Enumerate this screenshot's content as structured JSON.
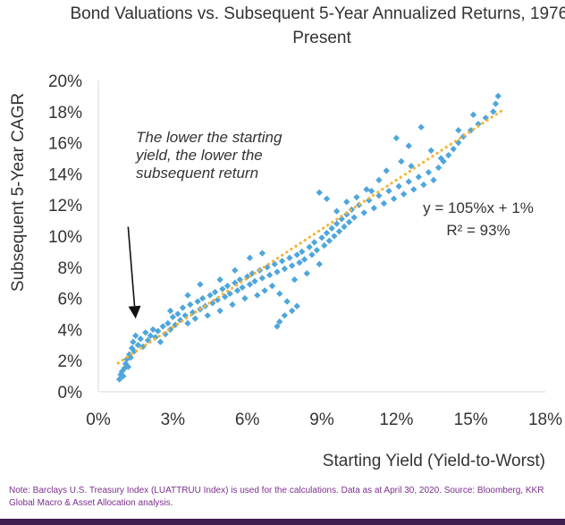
{
  "chart_data": {
    "type": "scatter",
    "title": "Bond Valuations vs. Subsequent 5-Year Annualized Returns, 1976-Present",
    "xlabel": "Starting Yield (Yield-to-Worst)",
    "ylabel": "Subsequent 5-Year CAGR",
    "xlim": [
      0,
      18
    ],
    "ylim": [
      0,
      20
    ],
    "x_ticks": [
      "0%",
      "3%",
      "6%",
      "9%",
      "12%",
      "15%",
      "18%"
    ],
    "y_ticks": [
      "0%",
      "2%",
      "4%",
      "6%",
      "8%",
      "10%",
      "12%",
      "14%",
      "16%",
      "18%",
      "20%"
    ],
    "grid": false,
    "annotation": [
      "The lower the starting",
      "yield, the lower the",
      "subsequent return"
    ],
    "annotation_arrow_from": [
      1.2,
      10.6
    ],
    "annotation_arrow_to": [
      1.5,
      4.7
    ],
    "trendline": {
      "slope": 1.05,
      "intercept": 1.0,
      "x_range": [
        0.8,
        16.3
      ],
      "color": "#F5B335",
      "style": "dotted"
    },
    "equation": [
      "y = 105%x + 1%",
      "R² = 93%"
    ],
    "marker_color": "#4EA6DC",
    "series": [
      {
        "points": [
          [
            0.85,
            0.8
          ],
          [
            0.9,
            1.1
          ],
          [
            0.95,
            1.3
          ],
          [
            1.0,
            1.0
          ],
          [
            1.05,
            1.5
          ],
          [
            1.1,
            1.8
          ],
          [
            1.15,
            2.1
          ],
          [
            1.2,
            1.6
          ],
          [
            1.25,
            2.4
          ],
          [
            1.3,
            2.2
          ],
          [
            1.35,
            2.8
          ],
          [
            1.4,
            3.2
          ],
          [
            1.45,
            2.6
          ],
          [
            1.5,
            3.6
          ],
          [
            1.6,
            3.0
          ],
          [
            1.7,
            3.4
          ],
          [
            1.8,
            2.9
          ],
          [
            1.9,
            3.8
          ],
          [
            2.0,
            3.3
          ],
          [
            2.1,
            3.6
          ],
          [
            2.2,
            4.0
          ],
          [
            2.3,
            3.5
          ],
          [
            2.4,
            3.9
          ],
          [
            2.5,
            3.2
          ],
          [
            2.6,
            4.2
          ],
          [
            2.7,
            3.7
          ],
          [
            2.8,
            4.4
          ],
          [
            2.9,
            4.0
          ],
          [
            3.0,
            4.8
          ],
          [
            3.1,
            4.3
          ],
          [
            3.2,
            5.0
          ],
          [
            3.3,
            4.6
          ],
          [
            3.4,
            5.4
          ],
          [
            3.5,
            4.9
          ],
          [
            3.6,
            4.4
          ],
          [
            3.7,
            5.6
          ],
          [
            3.8,
            5.1
          ],
          [
            3.9,
            4.7
          ],
          [
            4.0,
            5.8
          ],
          [
            4.1,
            5.3
          ],
          [
            4.2,
            6.0
          ],
          [
            4.3,
            5.5
          ],
          [
            4.4,
            4.9
          ],
          [
            4.5,
            6.2
          ],
          [
            4.6,
            5.7
          ],
          [
            4.7,
            6.4
          ],
          [
            4.8,
            5.9
          ],
          [
            4.9,
            5.2
          ],
          [
            5.0,
            6.6
          ],
          [
            5.1,
            6.1
          ],
          [
            5.2,
            6.8
          ],
          [
            5.3,
            6.3
          ],
          [
            5.4,
            5.6
          ],
          [
            5.5,
            7.0
          ],
          [
            5.6,
            6.5
          ],
          [
            5.7,
            7.2
          ],
          [
            5.8,
            6.7
          ],
          [
            5.9,
            6.0
          ],
          [
            6.0,
            7.4
          ],
          [
            6.1,
            6.9
          ],
          [
            6.2,
            7.6
          ],
          [
            6.3,
            7.1
          ],
          [
            6.4,
            6.2
          ],
          [
            6.5,
            7.8
          ],
          [
            6.6,
            7.3
          ],
          [
            6.7,
            6.5
          ],
          [
            6.8,
            8.0
          ],
          [
            6.9,
            7.5
          ],
          [
            7.0,
            6.8
          ],
          [
            7.1,
            8.2
          ],
          [
            7.2,
            7.7
          ],
          [
            7.3,
            6.3
          ],
          [
            7.4,
            8.4
          ],
          [
            7.5,
            7.9
          ],
          [
            7.6,
            5.8
          ],
          [
            7.7,
            8.6
          ],
          [
            7.8,
            8.1
          ],
          [
            7.9,
            7.2
          ],
          [
            8.0,
            8.8
          ],
          [
            8.1,
            8.3
          ],
          [
            8.2,
            9.0
          ],
          [
            8.3,
            8.5
          ],
          [
            8.4,
            7.6
          ],
          [
            8.5,
            9.3
          ],
          [
            8.6,
            8.8
          ],
          [
            8.7,
            9.6
          ],
          [
            8.8,
            9.1
          ],
          [
            8.9,
            8.2
          ],
          [
            9.0,
            9.9
          ],
          [
            9.1,
            9.4
          ],
          [
            9.2,
            10.2
          ],
          [
            9.3,
            9.7
          ],
          [
            9.4,
            10.5
          ],
          [
            9.5,
            10.0
          ],
          [
            9.6,
            10.8
          ],
          [
            9.7,
            10.3
          ],
          [
            9.8,
            11.1
          ],
          [
            9.9,
            10.6
          ],
          [
            10.0,
            11.4
          ],
          [
            10.1,
            10.9
          ],
          [
            10.2,
            11.7
          ],
          [
            10.3,
            11.2
          ],
          [
            10.5,
            12.0
          ],
          [
            10.7,
            11.5
          ],
          [
            10.9,
            12.3
          ],
          [
            11.1,
            11.8
          ],
          [
            11.3,
            12.6
          ],
          [
            11.5,
            12.1
          ],
          [
            11.7,
            12.9
          ],
          [
            11.9,
            12.4
          ],
          [
            12.1,
            13.2
          ],
          [
            12.3,
            12.7
          ],
          [
            12.5,
            13.5
          ],
          [
            12.7,
            13.0
          ],
          [
            12.9,
            13.8
          ],
          [
            13.1,
            13.3
          ],
          [
            13.3,
            14.1
          ],
          [
            13.5,
            13.6
          ],
          [
            13.7,
            14.4
          ],
          [
            13.9,
            14.8
          ],
          [
            14.1,
            15.2
          ],
          [
            14.3,
            15.6
          ],
          [
            14.5,
            16.0
          ],
          [
            14.7,
            16.4
          ],
          [
            15.0,
            16.8
          ],
          [
            15.3,
            17.2
          ],
          [
            15.6,
            17.6
          ],
          [
            15.9,
            18.0
          ],
          [
            16.0,
            18.5
          ],
          [
            16.1,
            19.0
          ],
          [
            7.3,
            4.5
          ],
          [
            7.5,
            4.9
          ],
          [
            7.8,
            5.2
          ],
          [
            8.0,
            5.5
          ],
          [
            7.2,
            4.2
          ],
          [
            12.0,
            16.3
          ],
          [
            12.5,
            15.8
          ],
          [
            13.0,
            17.0
          ],
          [
            13.8,
            15.0
          ],
          [
            14.5,
            16.8
          ],
          [
            15.1,
            17.8
          ],
          [
            8.9,
            12.8
          ],
          [
            9.2,
            12.4
          ],
          [
            10.0,
            12.2
          ],
          [
            11.3,
            13.6
          ],
          [
            12.6,
            14.5
          ],
          [
            11.0,
            12.9
          ],
          [
            10.8,
            13.0
          ],
          [
            4.9,
            7.2
          ],
          [
            5.5,
            7.8
          ],
          [
            6.1,
            8.6
          ],
          [
            4.1,
            6.9
          ],
          [
            3.6,
            6.2
          ],
          [
            2.9,
            5.2
          ],
          [
            6.6,
            8.9
          ],
          [
            9.6,
            11.6
          ],
          [
            10.4,
            12.5
          ],
          [
            11.6,
            14.2
          ],
          [
            12.2,
            14.8
          ],
          [
            13.4,
            15.5
          ]
        ]
      }
    ]
  },
  "footer": {
    "note": "Note: Barclays U.S. Treasury Index (LUATTRUU Index) is used for the calculations. Data as at April 30, 2020. Source: Bloomberg, KKR Global Macro & Asset Allocation analysis."
  }
}
